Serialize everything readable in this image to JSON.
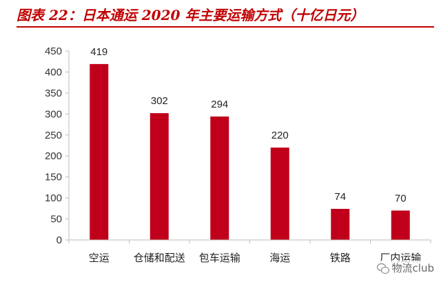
{
  "title": "图表 22：日本通运 2020 年主要运输方式（十亿日元）",
  "chart_data": {
    "type": "bar",
    "title": "图表 22：日本通运 2020 年主要运输方式（十亿日元）",
    "categories": [
      "空运",
      "仓储和配送",
      "包车运输",
      "海运",
      "铁路",
      "厂内运输"
    ],
    "values": [
      419,
      302,
      294,
      220,
      74,
      70
    ],
    "ylim": [
      0,
      450
    ],
    "yticks": [
      0,
      50,
      100,
      150,
      200,
      250,
      300,
      350,
      400,
      450
    ],
    "xlabel": "",
    "ylabel": "",
    "grid": false,
    "legend": "none",
    "bar_color": "#C0001A",
    "data_labels": true
  },
  "watermark": {
    "icon": "wechat-icon",
    "text": "物流club"
  },
  "colors": {
    "title": "#C00000",
    "bar": "#C0001A",
    "axis": "#BBBBBB"
  }
}
